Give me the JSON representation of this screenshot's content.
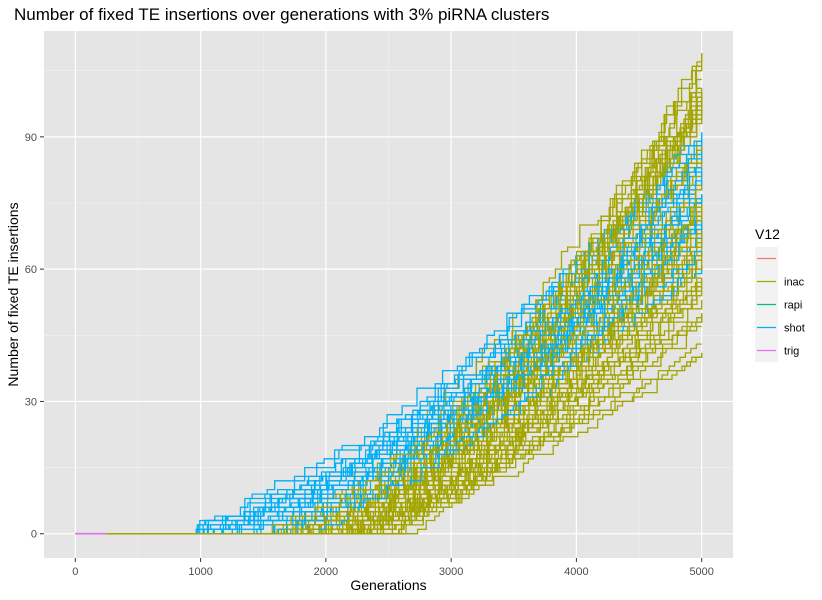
{
  "chart_data": {
    "type": "line",
    "title": "Number of fixed TE insertions over generations with 3% piRNA clusters",
    "xlabel": "Generations",
    "ylabel": "Number of fixed TE insertions",
    "xlim": [
      -250,
      5250
    ],
    "ylim": [
      -5.5,
      114
    ],
    "x_ticks": [
      0,
      1000,
      2000,
      3000,
      4000,
      5000
    ],
    "x_tick_labels": [
      "0",
      "1000",
      "2000",
      "3000",
      "4000",
      "5000"
    ],
    "y_ticks": [
      0,
      30,
      60,
      90
    ],
    "y_tick_labels": [
      "0",
      "30",
      "60",
      "90"
    ],
    "grid": true,
    "background": "#E5E5E5",
    "legend": {
      "title": "V12",
      "position": "right",
      "entries": [
        {
          "label": "",
          "color": "#F8766D"
        },
        {
          "label": "inac",
          "color": "#A3A500"
        },
        {
          "label": "rapi",
          "color": "#00BF7D"
        },
        {
          "label": "shot",
          "color": "#00B0F6"
        },
        {
          "label": "trig",
          "color": "#E76BF3"
        }
      ]
    },
    "series": [
      {
        "name": "inac",
        "color": "#A3A500",
        "n_runs": 70,
        "final_min": 41,
        "final_max": 109,
        "onset_range": [
          1500,
          2600
        ]
      },
      {
        "name": "shot",
        "color": "#00B0F6",
        "n_runs": 30,
        "final_min": 60,
        "final_max": 92,
        "onset_range": [
          700,
          1900
        ]
      },
      {
        "name": "trig",
        "color": "#E76BF3",
        "x": [
          0,
          250
        ],
        "y": [
          0,
          0
        ]
      }
    ]
  }
}
